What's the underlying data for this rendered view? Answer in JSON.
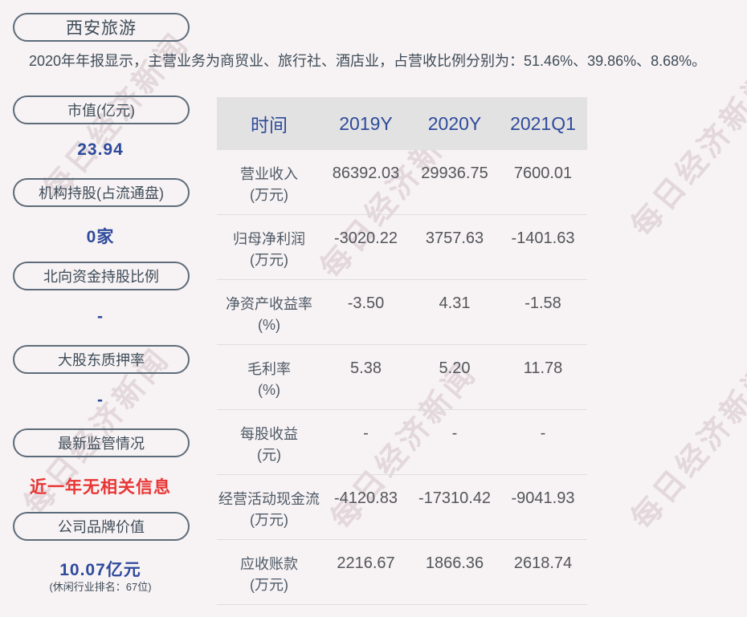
{
  "company": {
    "name": "西安旅游"
  },
  "summary": "2020年年报显示，主营业务为商贸业、旅行社、酒店业，占营收比例分别为：51.46%、39.86%、8.68%。",
  "watermark": {
    "text": "每日经济新闻"
  },
  "colors": {
    "background": "#f7f2f3",
    "accent_blue": "#2d4a9c",
    "alert_red": "#e93434",
    "pill_border": "#5d6c7a",
    "table_header_bg": "#e3e2e2",
    "body_text": "#3e4c59"
  },
  "sidebar": {
    "items": [
      {
        "label": "市值(亿元)",
        "value": "23.94",
        "note": ""
      },
      {
        "label": "机构持股(占流通盘)",
        "value": "0家",
        "note": ""
      },
      {
        "label": "北向资金持股比例",
        "value": "-",
        "note": ""
      },
      {
        "label": "大股东质押率",
        "value": "-",
        "note": ""
      },
      {
        "label": "最新监管情况",
        "value": "近一年无相关信息",
        "note": ""
      },
      {
        "label": "公司品牌价值",
        "value": "10.07亿元",
        "note": "(休闲行业排名：67位)"
      }
    ]
  },
  "chart_data": {
    "type": "table",
    "columns": [
      "时间",
      "2019Y",
      "2020Y",
      "2021Q1"
    ],
    "rows": [
      {
        "label": "营业收入",
        "unit": "(万元)",
        "values": [
          "86392.03",
          "29936.75",
          "7600.01"
        ]
      },
      {
        "label": "归母净利润",
        "unit": "(万元)",
        "values": [
          "-3020.22",
          "3757.63",
          "-1401.63"
        ]
      },
      {
        "label": "净资产收益率",
        "unit": "(%)",
        "values": [
          "-3.50",
          "4.31",
          "-1.58"
        ]
      },
      {
        "label": "毛利率",
        "unit": "(%)",
        "values": [
          "5.38",
          "5.20",
          "11.78"
        ]
      },
      {
        "label": "每股收益",
        "unit": "(元)",
        "values": [
          "-",
          "-",
          "-"
        ]
      },
      {
        "label": "经营活动现金流",
        "unit": "(万元)",
        "values": [
          "-4120.83",
          "-17310.42",
          "-9041.93"
        ]
      },
      {
        "label": "应收账款",
        "unit": "(万元)",
        "values": [
          "2216.67",
          "1866.36",
          "2618.74"
        ]
      }
    ]
  }
}
